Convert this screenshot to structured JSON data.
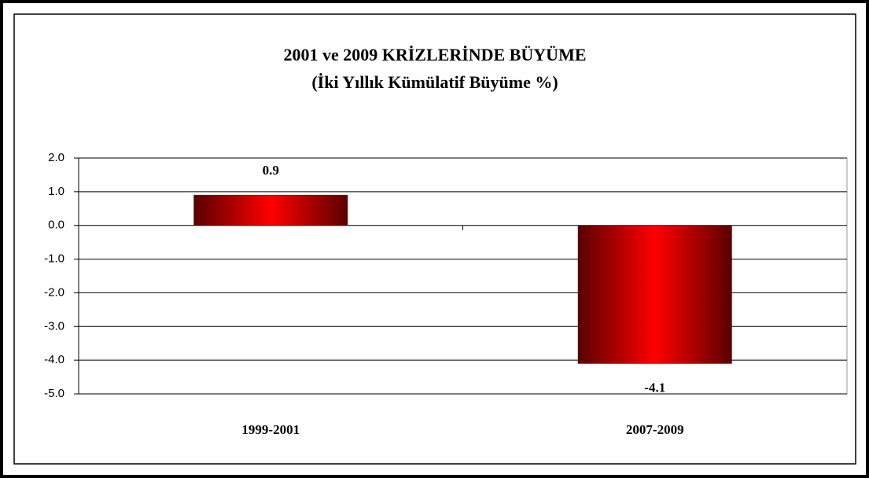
{
  "chart_data": {
    "type": "bar",
    "title": "2001 ve 2009 KRİZLERİNDE BÜYÜME",
    "subtitle": "(İki Yıllık Kümülatif Büyüme %)",
    "categories": [
      "1999-2001",
      "2007-2009"
    ],
    "values": [
      0.9,
      -4.1
    ],
    "color": "#ff0000",
    "ylim": [
      -5,
      2
    ],
    "yticks": [
      {
        "value": 2,
        "label": "2.0"
      },
      {
        "value": 1,
        "label": "1.0"
      },
      {
        "value": 0,
        "label": "0.0"
      },
      {
        "value": -1,
        "label": "-1.0"
      },
      {
        "value": -2,
        "label": "-2.0"
      },
      {
        "value": -3,
        "label": "-3.0"
      },
      {
        "value": -4,
        "label": "-4.0"
      },
      {
        "value": -5,
        "label": "-5.0"
      }
    ],
    "grid": true
  }
}
